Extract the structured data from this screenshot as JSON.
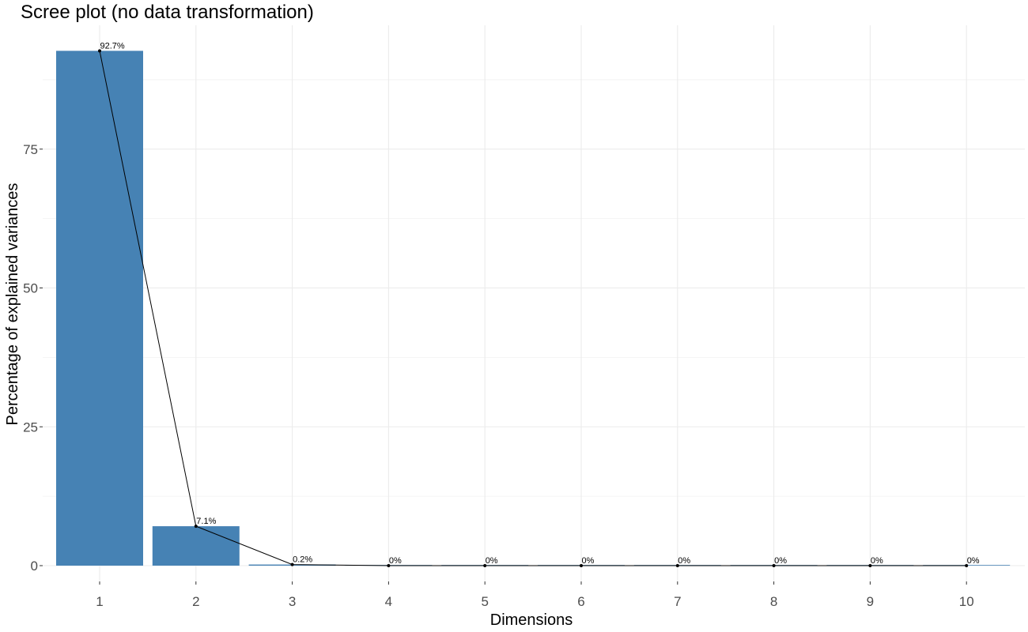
{
  "chart_data": {
    "type": "bar",
    "title": "Scree plot (no data transformation)",
    "xlabel": "Dimensions",
    "ylabel": "Percentage of explained variances",
    "categories": [
      "1",
      "2",
      "3",
      "4",
      "5",
      "6",
      "7",
      "8",
      "9",
      "10"
    ],
    "values": [
      92.7,
      7.1,
      0.2,
      0,
      0,
      0,
      0,
      0,
      0,
      0
    ],
    "data_labels": [
      "92.7%",
      "7.1%",
      "0.2%",
      "0%",
      "0%",
      "0%",
      "0%",
      "0%",
      "0%",
      "0%"
    ],
    "yticks": [
      0,
      25,
      50,
      75
    ],
    "ytick_labels": [
      "0",
      "25",
      "50",
      "75"
    ],
    "ylim": [
      0,
      97.3
    ],
    "overlay_line": true,
    "grid": true,
    "legend": "none",
    "colors": {
      "bar": "#4682b4",
      "line": "#000000",
      "grid": "#ebebeb",
      "tick_text": "#4d4d4d"
    }
  }
}
